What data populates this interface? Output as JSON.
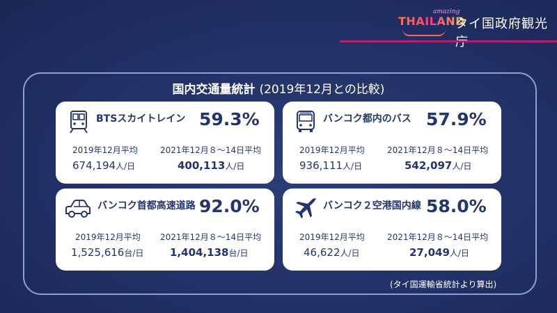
{
  "brand": {
    "logo_small": "amazing",
    "logo_main": "THAILAND",
    "agency": "タイ国政府観光庁"
  },
  "panel": {
    "title_main": "国内交通量統計",
    "title_sub": "(2019年12月との比較)"
  },
  "cards": [
    {
      "icon": "train-icon",
      "name": "BTSスカイトレイン",
      "percent": "59.3%",
      "label_before": "2019年12月平均",
      "label_after": "2021年12月８～14日平均",
      "value_before": "674,194",
      "value_after": "400,113",
      "unit": "人/日"
    },
    {
      "icon": "bus-icon",
      "name": "バンコク都内のバス",
      "percent": "57.9%",
      "label_before": "2019年12月平均",
      "label_after": "2021年12月８～14日平均",
      "value_before": "936,111",
      "value_after": "542,097",
      "unit": "人/日"
    },
    {
      "icon": "car-icon",
      "name": "バンコク首都高速道路",
      "percent": "92.0%",
      "label_before": "2019年12月平均",
      "label_after": "2021年12月８～14日平均",
      "value_before": "1,525,616",
      "value_after": "1,404,138",
      "unit": "台/日"
    },
    {
      "icon": "airplane-icon",
      "name": "バンコク２空港国内線",
      "percent": "58.0%",
      "label_before": "2019年12月平均",
      "label_after": "2021年12月８～14日平均",
      "value_before": "46,622",
      "value_after": "27,049",
      "unit": "人/日"
    }
  ],
  "source": "(タイ国運輸省統計より算出)",
  "colors": {
    "background": "#23336a",
    "card_text": "#24346d",
    "accent_line": "#b4206b"
  }
}
